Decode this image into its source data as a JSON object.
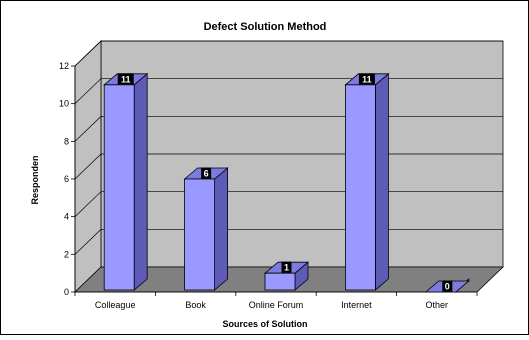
{
  "chart_data": {
    "type": "bar",
    "title": "Defect Solution Method",
    "xlabel": "Sources of Solution",
    "ylabel": "Responden",
    "categories": [
      "Colleague",
      "Book",
      "Online Forum",
      "Internet",
      "Other"
    ],
    "values": [
      11,
      6,
      1,
      11,
      0
    ],
    "ylim": [
      0,
      12
    ],
    "yticks": [
      "0",
      "2",
      "4",
      "6",
      "8",
      "10",
      "12"
    ],
    "grid": true,
    "legend": "none",
    "colors": {
      "bar_front": "#9999ff",
      "bar_side": "#5c5cb8",
      "bar_top": "#7b7be0",
      "back_wall": "#c0c0c0",
      "floor": "#808080",
      "gridline": "#000000"
    }
  }
}
